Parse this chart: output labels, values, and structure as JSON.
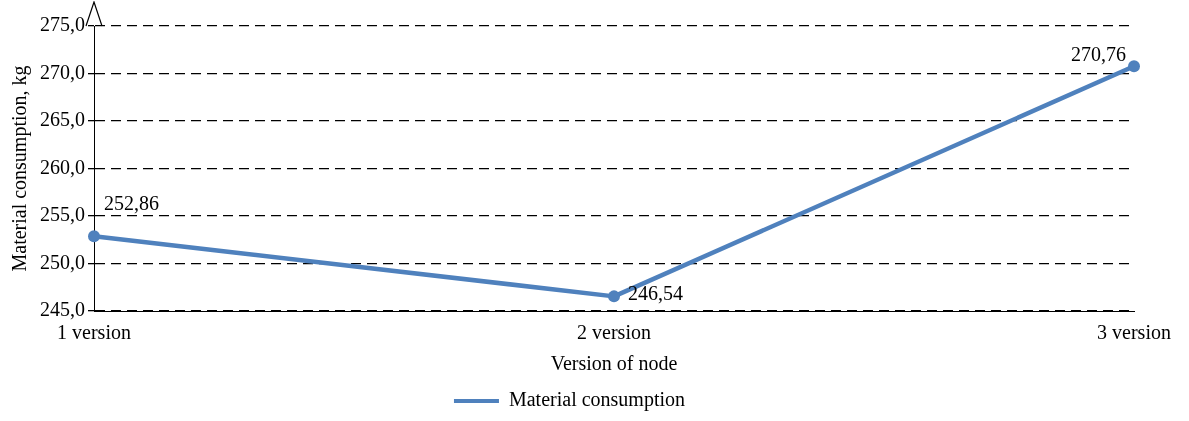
{
  "chart_data": {
    "type": "line",
    "xlabel": "Version of node",
    "ylabel": "Material consumption, kg",
    "categories": [
      "1 version",
      "2 version",
      "3 version"
    ],
    "series": [
      {
        "name": "Material consumption",
        "color": "#4f81bd",
        "values": [
          252.86,
          246.54,
          270.76
        ],
        "value_labels": [
          "252,86",
          "246,54",
          "270,76"
        ]
      }
    ],
    "ylim": [
      245,
      275
    ],
    "yticks": [
      {
        "value": 245,
        "label": "245,0"
      },
      {
        "value": 250,
        "label": "250,0"
      },
      {
        "value": 255,
        "label": "255,0"
      },
      {
        "value": 260,
        "label": "260,0"
      },
      {
        "value": 265,
        "label": "265,0"
      },
      {
        "value": 270,
        "label": "270,0"
      },
      {
        "value": 275,
        "label": "275,0"
      }
    ],
    "grid": "y",
    "legend": "bottom",
    "marker": "circle",
    "line_style": "solid"
  }
}
